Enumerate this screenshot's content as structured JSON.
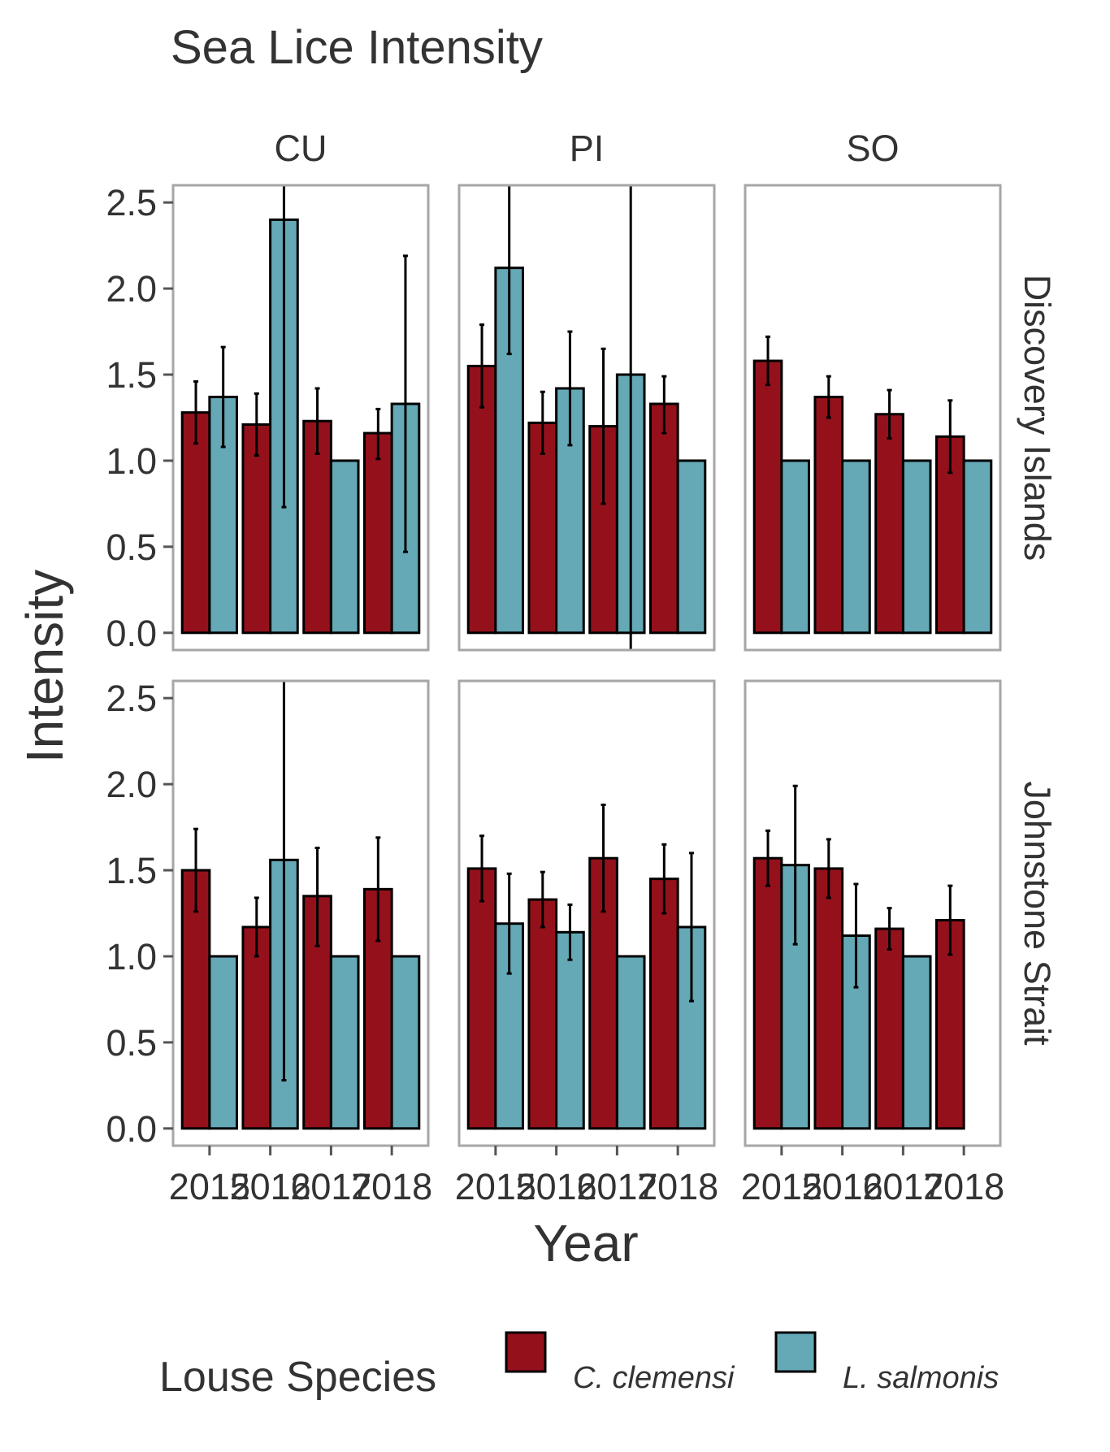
{
  "chart_data": {
    "type": "bar",
    "title": "Sea Lice Intensity",
    "xlabel": "Year",
    "ylabel": "Intensity",
    "ylim": [
      -0.1,
      2.6
    ],
    "yticks": [
      "0.0",
      "0.5",
      "1.0",
      "1.5",
      "2.0",
      "2.5"
    ],
    "categories": [
      "2015",
      "2016",
      "2017",
      "2018"
    ],
    "columns": [
      "CU",
      "PI",
      "SO"
    ],
    "rows": [
      "Discovery Islands",
      "Johnstone Strait"
    ],
    "legend": {
      "title": "Louse Species",
      "position": "bottom",
      "entries": [
        {
          "label": "C. clemensi",
          "color": "#94111c"
        },
        {
          "label": "L. salmonis",
          "color": "#65a9b7"
        }
      ]
    },
    "grid": false,
    "panels": [
      {
        "row": "Discovery Islands",
        "col": "CU",
        "series": [
          {
            "name": "C. clemensi",
            "values": [
              1.28,
              1.21,
              1.23,
              1.16
            ],
            "lower": [
              1.1,
              1.03,
              1.04,
              1.01
            ],
            "upper": [
              1.46,
              1.39,
              1.42,
              1.3
            ]
          },
          {
            "name": "L. salmonis",
            "values": [
              1.37,
              2.4,
              1.0,
              1.33
            ],
            "lower": [
              1.08,
              0.73,
              null,
              0.47
            ],
            "upper": [
              1.66,
              2.6,
              null,
              2.19
            ]
          }
        ]
      },
      {
        "row": "Discovery Islands",
        "col": "PI",
        "series": [
          {
            "name": "C. clemensi",
            "values": [
              1.55,
              1.22,
              1.2,
              1.33
            ],
            "lower": [
              1.31,
              1.04,
              0.75,
              1.16
            ],
            "upper": [
              1.79,
              1.4,
              1.65,
              1.49
            ]
          },
          {
            "name": "L. salmonis",
            "values": [
              2.12,
              1.42,
              1.5,
              1.0
            ],
            "lower": [
              1.62,
              1.09,
              -0.1,
              null
            ],
            "upper": [
              2.6,
              1.75,
              2.6,
              null
            ]
          }
        ]
      },
      {
        "row": "Discovery Islands",
        "col": "SO",
        "series": [
          {
            "name": "C. clemensi",
            "values": [
              1.58,
              1.37,
              1.27,
              1.14
            ],
            "lower": [
              1.44,
              1.25,
              1.13,
              0.93
            ],
            "upper": [
              1.72,
              1.49,
              1.41,
              1.35
            ]
          },
          {
            "name": "L. salmonis",
            "values": [
              1.0,
              1.0,
              1.0,
              1.0
            ],
            "lower": [
              null,
              null,
              null,
              null
            ],
            "upper": [
              null,
              null,
              null,
              null
            ]
          }
        ]
      },
      {
        "row": "Johnstone Strait",
        "col": "CU",
        "series": [
          {
            "name": "C. clemensi",
            "values": [
              1.5,
              1.17,
              1.35,
              1.39
            ],
            "lower": [
              1.26,
              1.0,
              1.06,
              1.09
            ],
            "upper": [
              1.74,
              1.34,
              1.63,
              1.69
            ]
          },
          {
            "name": "L. salmonis",
            "values": [
              1.0,
              1.56,
              1.0,
              1.0
            ],
            "lower": [
              null,
              0.28,
              null,
              null
            ],
            "upper": [
              null,
              2.6,
              null,
              null
            ]
          }
        ]
      },
      {
        "row": "Johnstone Strait",
        "col": "PI",
        "series": [
          {
            "name": "C. clemensi",
            "values": [
              1.51,
              1.33,
              1.57,
              1.45
            ],
            "lower": [
              1.32,
              1.17,
              1.26,
              1.25
            ],
            "upper": [
              1.7,
              1.49,
              1.88,
              1.65
            ]
          },
          {
            "name": "L. salmonis",
            "values": [
              1.19,
              1.14,
              1.0,
              1.17
            ],
            "lower": [
              0.9,
              0.98,
              null,
              0.74
            ],
            "upper": [
              1.48,
              1.3,
              null,
              1.6
            ]
          }
        ]
      },
      {
        "row": "Johnstone Strait",
        "col": "SO",
        "series": [
          {
            "name": "C. clemensi",
            "values": [
              1.57,
              1.51,
              1.16,
              1.21
            ],
            "lower": [
              1.41,
              1.34,
              1.04,
              1.01
            ],
            "upper": [
              1.73,
              1.68,
              1.28,
              1.41
            ]
          },
          {
            "name": "L. salmonis",
            "values": [
              1.53,
              1.12,
              1.0,
              null
            ],
            "lower": [
              1.07,
              0.82,
              null,
              null
            ],
            "upper": [
              1.99,
              1.42,
              null,
              null
            ]
          }
        ]
      }
    ]
  }
}
